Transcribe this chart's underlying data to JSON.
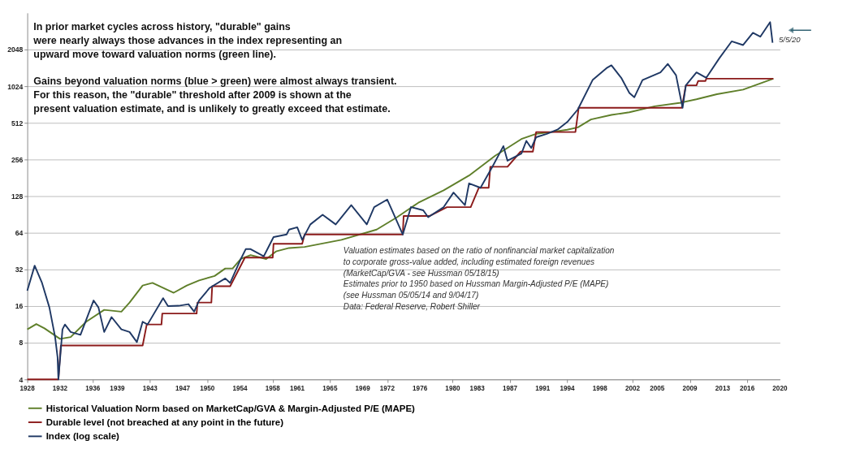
{
  "chart_data": {
    "type": "line",
    "log": "y",
    "grid": "y",
    "legend": "bottom",
    "line_style": "solid",
    "marker": "none",
    "xlim": [
      1928,
      2020
    ],
    "ylim": [
      4,
      4096
    ],
    "yticks": [
      4,
      8,
      16,
      32,
      64,
      128,
      256,
      512,
      1024,
      2048
    ],
    "xticks": [
      1928,
      1932,
      1936,
      1939,
      1943,
      1947,
      1950,
      1954,
      1958,
      1961,
      1965,
      1969,
      1972,
      1976,
      1980,
      1983,
      1987,
      1991,
      1994,
      1998,
      2002,
      2005,
      2009,
      2013,
      2016,
      2020
    ],
    "series": [
      {
        "name": "Historical Valuation Norm based on MarketCap/GVA & Margin-Adjusted P/E (MAPE)",
        "color": "#5f7f2a",
        "x": [
          1928,
          1929.1,
          1930.1,
          1932,
          1933.3,
          1935.2,
          1937.4,
          1939.5,
          1940.5,
          1942.1,
          1943.3,
          1945.9,
          1947.5,
          1949,
          1950.9,
          1952.2,
          1953.1,
          1954.1,
          1955.3,
          1957.2,
          1958.4,
          1960,
          1961.9,
          1966.4,
          1970.7,
          1973.2,
          1975.8,
          1978.9,
          1982,
          1985.2,
          1988.4,
          1990.2,
          1992.1,
          1994,
          1995.3,
          1996.9,
          1999.4,
          2001.6,
          2004.7,
          2007.9,
          2009.8,
          2012.3,
          2015.5,
          2019.2
        ],
        "values": [
          10.3,
          11.4,
          10.5,
          8.6,
          8.9,
          11.9,
          14.9,
          14.4,
          17.1,
          23.6,
          24.8,
          20.6,
          23.6,
          26,
          28.3,
          32.6,
          32.6,
          39,
          42,
          39,
          45,
          48,
          49,
          56,
          68,
          86,
          113,
          143,
          189,
          275,
          377,
          416,
          430,
          450,
          470,
          546,
          595,
          625,
          700,
          750,
          800,
          880,
          960,
          1180
        ]
      },
      {
        "name": "Durable level (not breached at any point in the future)",
        "color": "#8b1a1a",
        "x": [
          1928,
          1931.8,
          1932.1,
          1942.1,
          1942.6,
          1944.4,
          1944.5,
          1948.7,
          1948.8,
          1950.5,
          1950.6,
          1952.8,
          1954.6,
          1958,
          1958.1,
          1961.6,
          1961.9,
          1973.9,
          1974,
          1977.2,
          1979.3,
          1982.2,
          1983.2,
          1984.4,
          1984.6,
          1986.7,
          1988.3,
          1989.8,
          1990.2,
          1995,
          1995.4,
          2008,
          2008.5,
          2009.8,
          2010,
          2010.9,
          2011,
          2019.2
        ],
        "values": [
          4,
          4,
          7.6,
          7.6,
          11.3,
          11.3,
          13.9,
          13.9,
          17.1,
          17.1,
          23.3,
          23.3,
          40,
          40,
          52,
          52,
          62,
          62,
          88,
          88,
          104,
          104,
          150,
          150,
          223,
          223,
          297,
          297,
          430,
          430,
          680,
          680,
          1040,
          1040,
          1130,
          1130,
          1180,
          1180
        ]
      },
      {
        "name": "Index (log scale)",
        "color": "#1f3864",
        "x": [
          1928,
          1928.9,
          1929.8,
          1930.7,
          1931.4,
          1931.7,
          1931.8,
          1932.3,
          1932.6,
          1933.3,
          1934.5,
          1936.1,
          1936.7,
          1937.4,
          1938.3,
          1939.5,
          1940.5,
          1941.4,
          1942.1,
          1942.7,
          1944.6,
          1945.2,
          1946.5,
          1947.7,
          1948.4,
          1949,
          1950.3,
          1952.2,
          1952.8,
          1954.1,
          1954.7,
          1955.3,
          1956.9,
          1958.1,
          1959.7,
          1960,
          1961,
          1961.6,
          1962.6,
          1964.1,
          1965.7,
          1967.6,
          1969.5,
          1970.4,
          1972,
          1973.9,
          1974.9,
          1976.4,
          1977,
          1978.9,
          1980.1,
          1981.5,
          1982,
          1983.4,
          1984.9,
          1986.2,
          1986.7,
          1988.4,
          1989,
          1989.6,
          1990.2,
          1991.5,
          1992.8,
          1994,
          1995.3,
          1997.1,
          1998.8,
          1999.4,
          2000.6,
          2001.6,
          2002.2,
          2003.2,
          2005.4,
          2006.3,
          2007.3,
          2008.1,
          2008.5,
          2009.8,
          2011,
          2012.6,
          2014.1,
          2015.5,
          2016.7,
          2017.6,
          2018.8,
          2019.1
        ],
        "values": [
          21.4,
          34.4,
          24.8,
          15.6,
          8.9,
          6.1,
          4,
          10.3,
          11.3,
          9.8,
          9.3,
          17.8,
          15.6,
          9.8,
          13,
          10.3,
          9.8,
          8.1,
          11.9,
          11.3,
          18.6,
          16,
          16.1,
          16.6,
          14.4,
          17.8,
          22.6,
          27,
          24.8,
          39,
          47,
          47,
          41,
          59,
          62,
          68,
          71,
          56,
          75,
          90,
          75,
          108,
          75,
          104,
          120,
          62,
          104,
          98,
          86,
          104,
          137,
          108,
          163,
          150,
          226,
          330,
          250,
          286,
          364,
          318,
          390,
          416,
          450,
          520,
          660,
          1150,
          1440,
          1520,
          1200,
          900,
          830,
          1150,
          1330,
          1560,
          1260,
          680,
          1040,
          1330,
          1200,
          1740,
          2390,
          2230,
          2810,
          2610,
          3440,
          2330
        ]
      }
    ],
    "annotations": [
      "In prior market cycles across history, \"durable\" gains\nwere nearly always those advances in the index representing an\nupward move toward valuation norms (green line).",
      "Gains beyond valuation norms (blue > green) were almost always transient.\nFor this reason, the \"durable\" threshold after 2009 is shown at the\npresent valuation estimate, and is unlikely to greatly exceed that estimate.",
      "Valuation estimates based on the ratio of nonfinancial  market capitalization\nto corporate gross-value added, including estimated foreign revenues\n(MarketCap/GVA  - see Hussman 05/18/15)\nEstimates prior to 1950 based on Hussman Margin-Adjusted P/E (MAPE)\n(see Hussman 05/05/14 and 9/04/17)\nData: Federal Reserve, Robert Shiller",
      {
        "text": "5/5/20",
        "x": 2019.1,
        "y": 2330
      }
    ]
  }
}
